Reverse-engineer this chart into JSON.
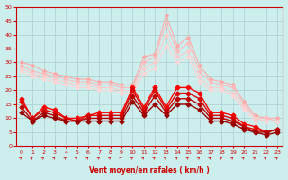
{
  "x": [
    0,
    1,
    2,
    3,
    4,
    5,
    6,
    7,
    8,
    9,
    10,
    11,
    12,
    13,
    14,
    15,
    16,
    17,
    18,
    19,
    20,
    21,
    22,
    23
  ],
  "series": [
    {
      "color": "#ffaaaa",
      "linewidth": 0.8,
      "markersize": 2.0,
      "y": [
        30,
        29,
        27,
        26,
        25,
        24,
        24,
        23,
        23,
        22,
        22,
        32,
        33,
        47,
        36,
        39,
        29,
        24,
        23,
        22,
        16,
        11,
        10,
        10
      ]
    },
    {
      "color": "#ffbbbb",
      "linewidth": 0.8,
      "markersize": 2.0,
      "y": [
        29,
        27,
        26,
        25,
        24,
        23,
        23,
        22,
        22,
        21,
        21,
        30,
        32,
        44,
        34,
        37,
        27,
        23,
        22,
        21,
        15,
        10,
        10,
        9
      ]
    },
    {
      "color": "#ffcccc",
      "linewidth": 0.8,
      "markersize": 2.0,
      "y": [
        28,
        26,
        25,
        24,
        23,
        22,
        22,
        21,
        21,
        20,
        20,
        28,
        30,
        40,
        32,
        34,
        25,
        21,
        21,
        19,
        14,
        10,
        9,
        9
      ]
    },
    {
      "color": "#ffd5d5",
      "linewidth": 0.8,
      "markersize": 2.0,
      "y": [
        27,
        25,
        24,
        23,
        22,
        21,
        21,
        20,
        20,
        19,
        19,
        26,
        28,
        36,
        30,
        32,
        23,
        20,
        20,
        18,
        13,
        9,
        9,
        9
      ]
    },
    {
      "color": "#ff0000",
      "linewidth": 1.0,
      "markersize": 2.5,
      "y": [
        17,
        10,
        14,
        13,
        10,
        10,
        11,
        12,
        12,
        12,
        21,
        14,
        21,
        14,
        21,
        21,
        19,
        12,
        12,
        11,
        8,
        7,
        5,
        6
      ]
    },
    {
      "color": "#dd0000",
      "linewidth": 1.0,
      "markersize": 2.5,
      "y": [
        16,
        10,
        13,
        12,
        10,
        9,
        11,
        11,
        11,
        11,
        20,
        13,
        20,
        13,
        19,
        19,
        17,
        11,
        11,
        10,
        7,
        6,
        5,
        6
      ]
    },
    {
      "color": "#bb0000",
      "linewidth": 1.0,
      "markersize": 2.5,
      "y": [
        14,
        9,
        12,
        11,
        9,
        9,
        10,
        10,
        10,
        10,
        18,
        12,
        18,
        12,
        17,
        17,
        15,
        10,
        10,
        9,
        7,
        5,
        5,
        6
      ]
    },
    {
      "color": "#990000",
      "linewidth": 1.0,
      "markersize": 2.5,
      "y": [
        12,
        9,
        11,
        10,
        9,
        9,
        9,
        9,
        9,
        9,
        16,
        11,
        15,
        11,
        15,
        15,
        13,
        9,
        9,
        8,
        6,
        5,
        4,
        5
      ]
    }
  ],
  "xlabel": "Vent moyen/en rafales ( km/h )",
  "xlim": [
    -0.5,
    23.5
  ],
  "ylim": [
    0,
    50
  ],
  "yticks": [
    0,
    5,
    10,
    15,
    20,
    25,
    30,
    35,
    40,
    45,
    50
  ],
  "xticks": [
    0,
    1,
    2,
    3,
    4,
    5,
    6,
    7,
    8,
    9,
    10,
    11,
    12,
    13,
    14,
    15,
    16,
    17,
    18,
    19,
    20,
    21,
    22,
    23
  ],
  "background_color": "#cceeed",
  "grid_color": "#aacccc",
  "spine_color": "#cc0000",
  "label_color": "#cc0000"
}
